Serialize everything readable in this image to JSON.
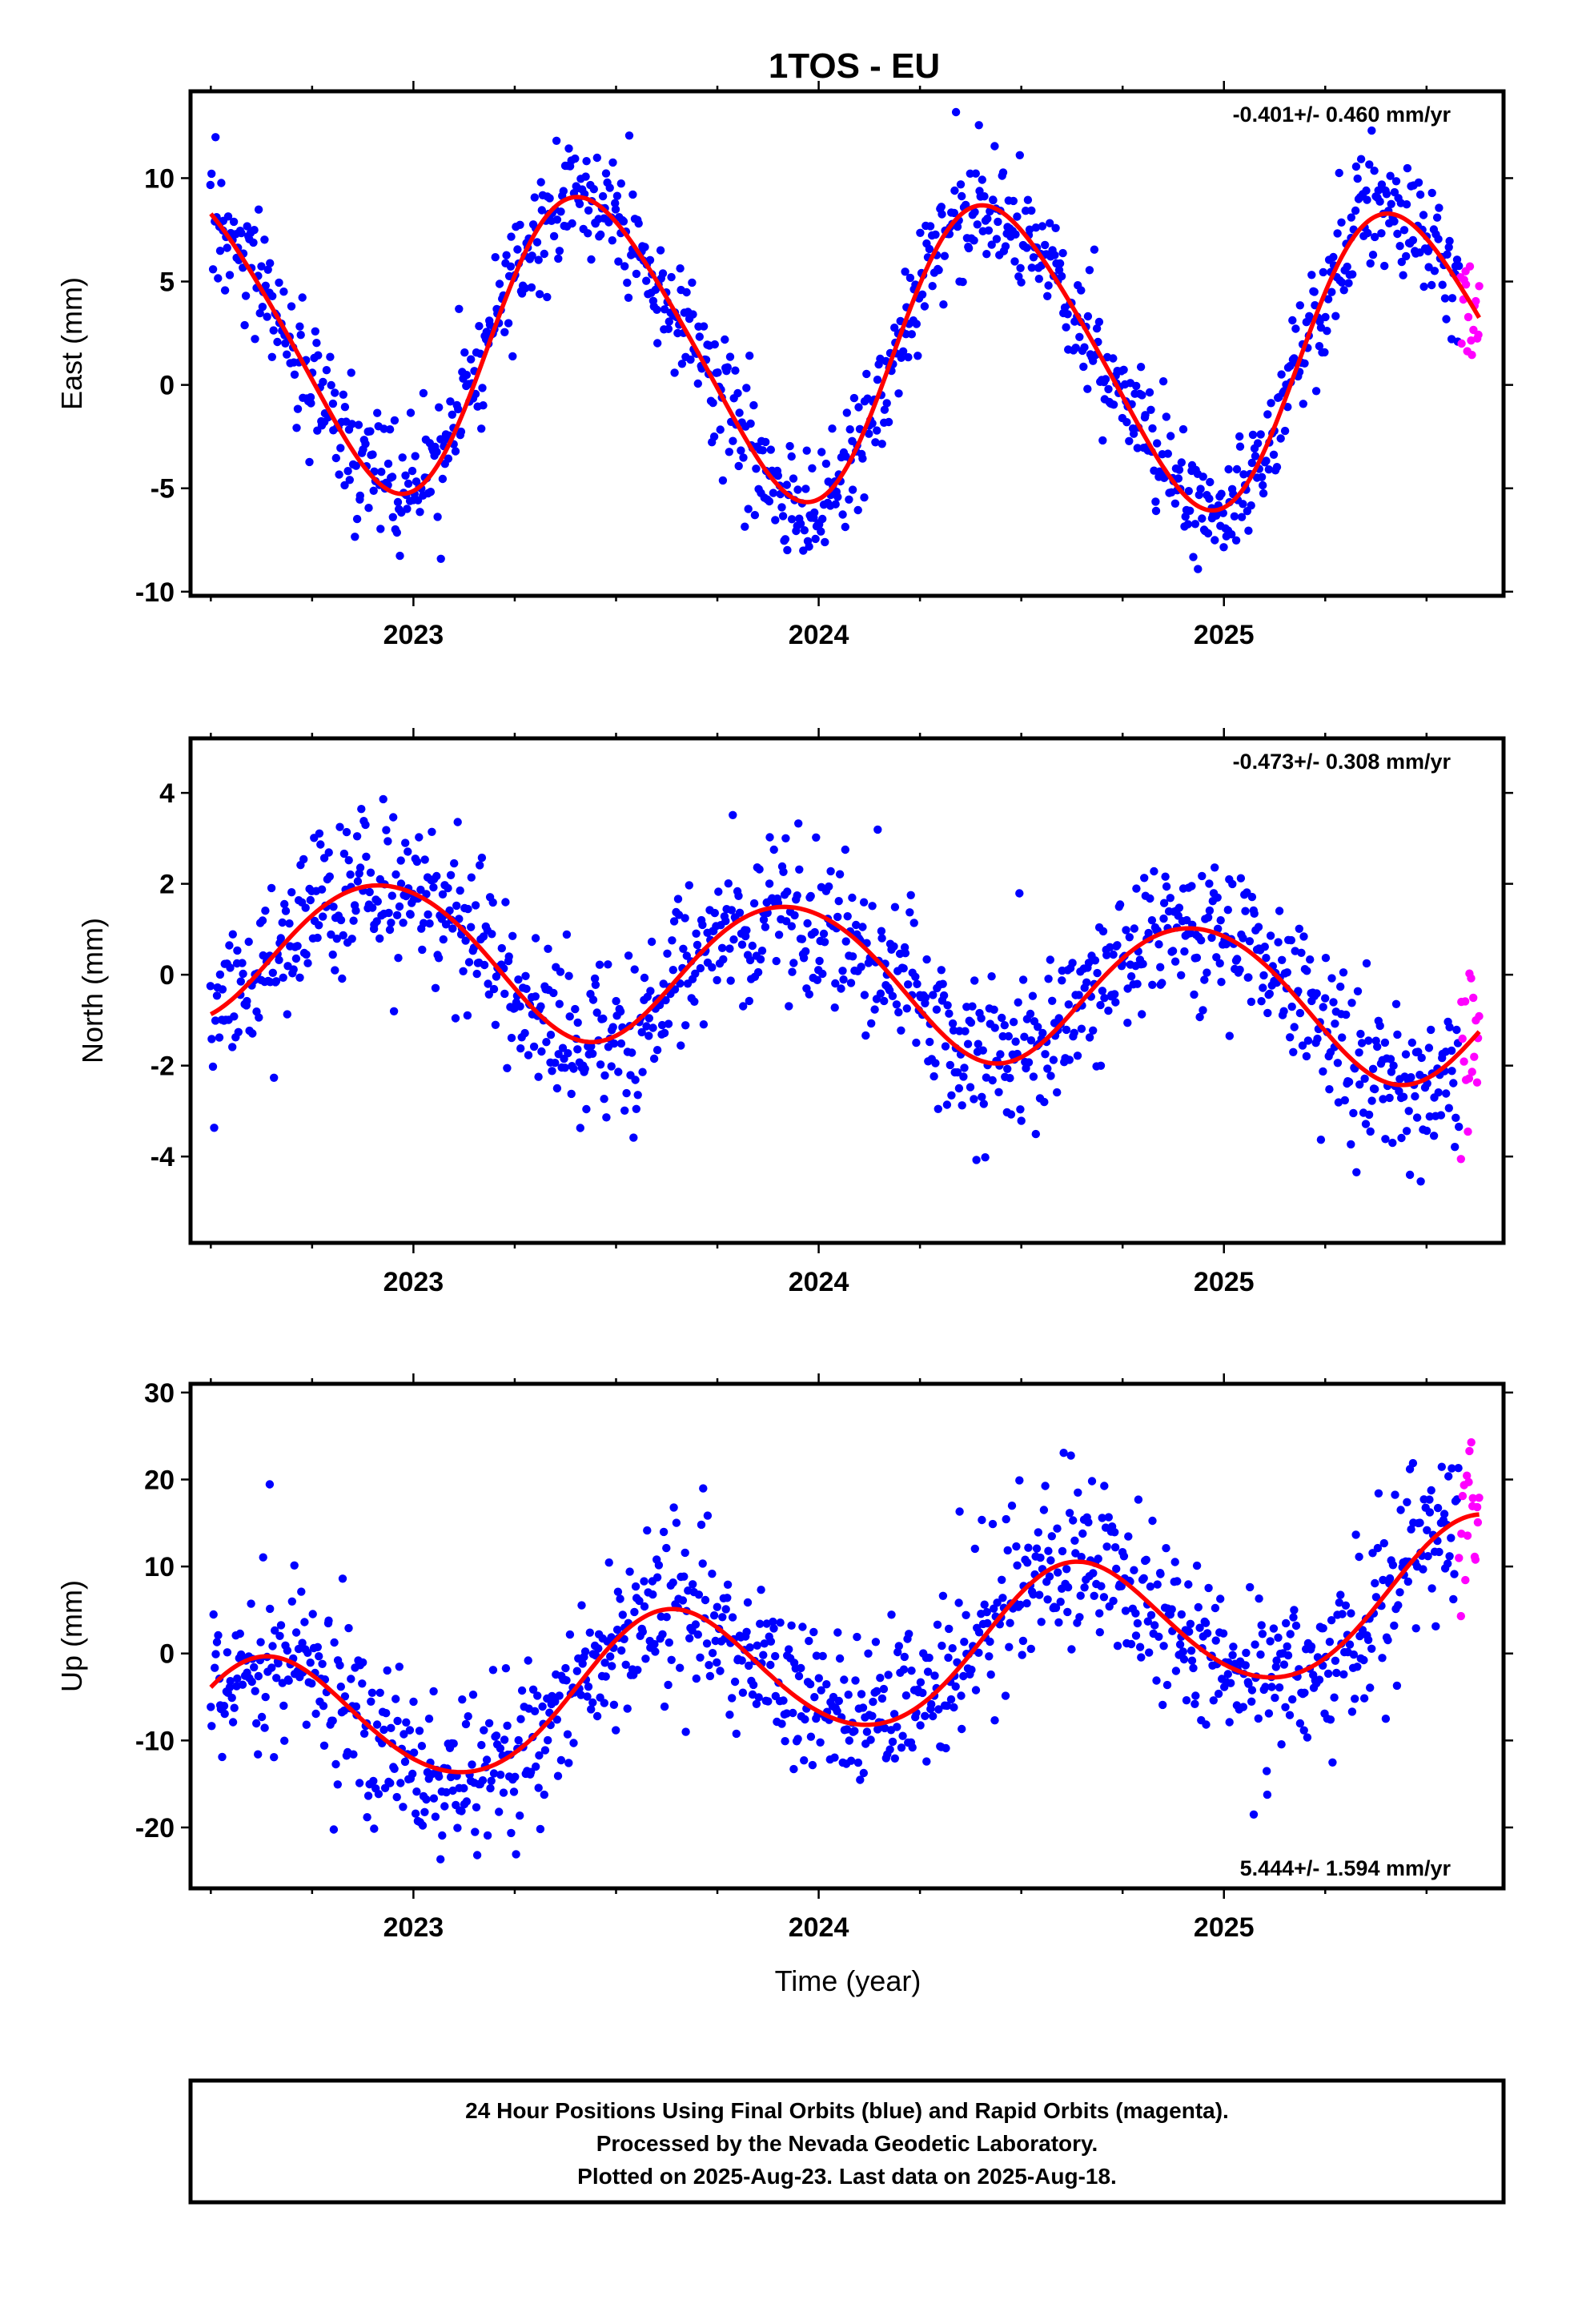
{
  "title": "1TOS - EU",
  "time_axis_label": "Time (year)",
  "footer": {
    "lines": [
      "24 Hour Positions Using Final Orbits (blue) and Rapid Orbits (magenta).",
      "Processed by the Nevada Geodetic Laboratory.",
      "Plotted on 2025-Aug-23. Last data on 2025-Aug-18."
    ]
  },
  "colors": {
    "final": "#0000ff",
    "rapid": "#ff00ff",
    "model": "#ff0000",
    "frame": "#000000"
  },
  "chart_data": [
    {
      "type": "scatter",
      "panel": "east",
      "ylabel": "East (mm)",
      "xlabel": "",
      "xlim": [
        2022.45,
        2025.69
      ],
      "ylim": [
        -10.2,
        14.2
      ],
      "xticks": [
        2023,
        2024,
        2025
      ],
      "xtick_labels": [
        "2023",
        "2024",
        "2025"
      ],
      "yticks": [
        -10,
        -5,
        0,
        5,
        10
      ],
      "ytick_labels": [
        "-10",
        "-5",
        "0",
        "5",
        "10"
      ],
      "rate_text": "-0.401+/- 0.460 mm/yr",
      "rate_position": "top-right",
      "data_span": [
        2022.5,
        2025.63
      ],
      "rapid_span": [
        2025.58,
        2025.63
      ],
      "model": {
        "mean": 1.72,
        "rate": -0.401,
        "annual_amp": 7.1,
        "annual_peak": 0.44,
        "semiannual_amp": 0.8,
        "semiannual_peak": 0.3,
        "anchor_year": 2024
      },
      "scatter_sigma": 1.5,
      "series": [
        {
          "name": "Final Orbits (blue)",
          "color": "#0000ff"
        },
        {
          "name": "Rapid Orbits (magenta)",
          "color": "#ff00ff"
        }
      ]
    },
    {
      "type": "scatter",
      "panel": "north",
      "ylabel": "North (mm)",
      "xlabel": "",
      "xlim": [
        2022.45,
        2025.69
      ],
      "ylim": [
        -5.9,
        5.2
      ],
      "xticks": [
        2023,
        2024,
        2025
      ],
      "xtick_labels": [
        "2023",
        "2024",
        "2025"
      ],
      "yticks": [
        -4,
        -2,
        0,
        2,
        4
      ],
      "ytick_labels": [
        "-4",
        "-2",
        "0",
        "2",
        "4"
      ],
      "rate_text": "-0.473+/- 0.308 mm/yr",
      "rate_position": "top-right",
      "data_span": [
        2022.5,
        2025.63
      ],
      "rapid_span": [
        2025.58,
        2025.63
      ],
      "model": {
        "mean": -0.05,
        "rate": -0.473,
        "annual_amp": 1.6,
        "annual_peak": 0.93,
        "semiannual_amp": 0.1,
        "semiannual_peak": 0.2,
        "anchor_year": 2024
      },
      "scatter_sigma": 0.9,
      "series": [
        {
          "name": "Final Orbits (blue)",
          "color": "#0000ff"
        },
        {
          "name": "Rapid Orbits (magenta)",
          "color": "#ff00ff"
        }
      ]
    },
    {
      "type": "scatter",
      "panel": "up",
      "ylabel": "Up (mm)",
      "xlabel": "Time (year)",
      "xlim": [
        2022.45,
        2025.69
      ],
      "ylim": [
        -27,
        31
      ],
      "xticks": [
        2023,
        2024,
        2025
      ],
      "xtick_labels": [
        "2023",
        "2024",
        "2025"
      ],
      "yticks": [
        -20,
        -10,
        0,
        10,
        20,
        30
      ],
      "ytick_labels": [
        "-20",
        "-10",
        "0",
        "10",
        "20",
        "30"
      ],
      "rate_text": "5.444+/- 1.594 mm/yr",
      "rate_position": "bottom-right",
      "data_span": [
        2022.5,
        2025.63
      ],
      "rapid_span": [
        2025.58,
        2025.63
      ],
      "model": {
        "mean": -1.35,
        "rate": 5.444,
        "annual_amp": 8.0,
        "annual_peak": 0.63,
        "semiannual_amp": 0.5,
        "semiannual_peak": 0.1,
        "anchor_year": 2024
      },
      "scatter_sigma": 4.8,
      "series": [
        {
          "name": "Final Orbits (blue)",
          "color": "#0000ff"
        },
        {
          "name": "Rapid Orbits (magenta)",
          "color": "#ff00ff"
        }
      ]
    }
  ]
}
